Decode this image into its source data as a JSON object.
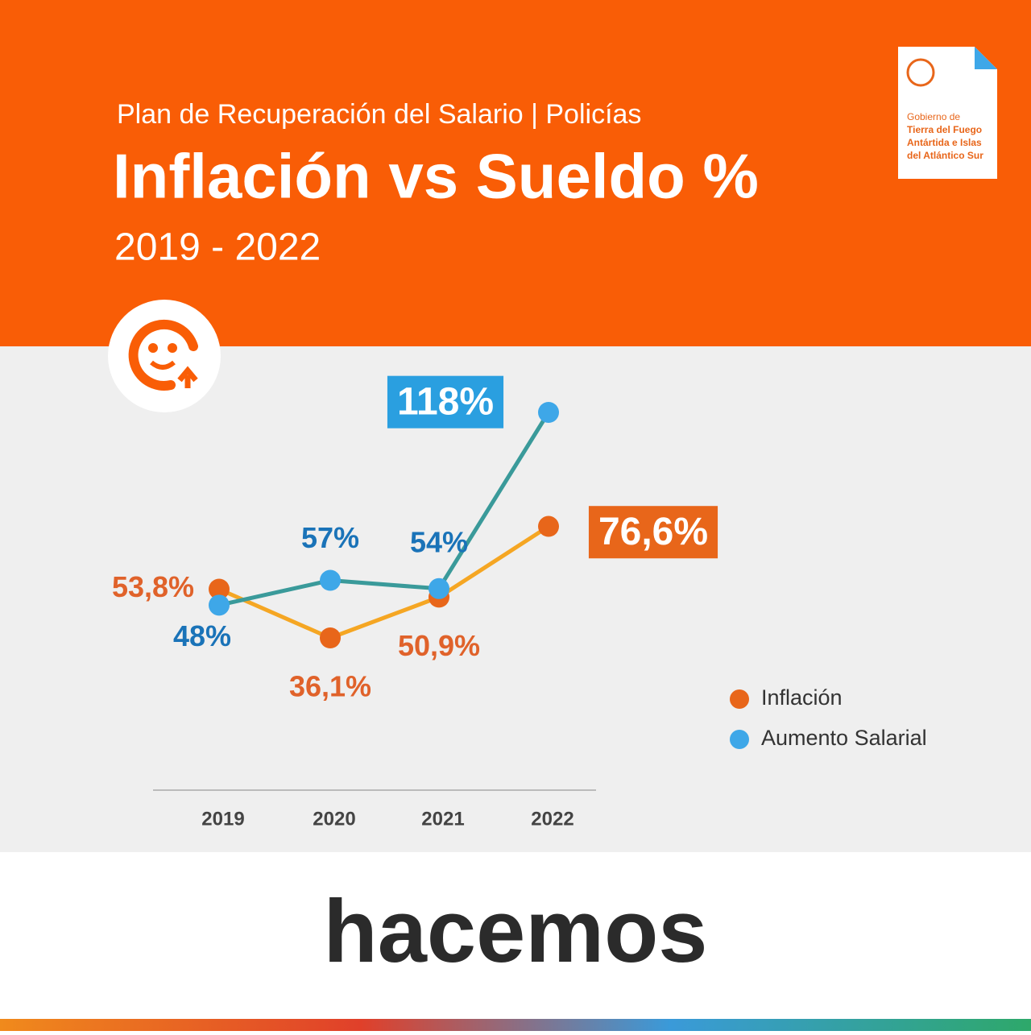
{
  "chart_data": {
    "type": "line",
    "subtitle": "Plan de Recuperación del Salario | Policías",
    "title": "Inflación vs Sueldo %",
    "period": "2019 - 2022",
    "categories": [
      "2019",
      "2020",
      "2021",
      "2022"
    ],
    "series": [
      {
        "name": "Inflación",
        "color": "#e8661a",
        "values": [
          53.8,
          36.1,
          50.9,
          76.6
        ],
        "value_labels": [
          "53,8%",
          "36,1%",
          "50,9%",
          "76,6%"
        ]
      },
      {
        "name": "Aumento Salarial",
        "color": "#3ea7e8",
        "values": [
          48,
          57,
          54,
          118
        ],
        "value_labels": [
          "48%",
          "57%",
          "54%",
          "118%"
        ]
      }
    ]
  },
  "logo": {
    "lines": [
      "Gobierno de",
      "Tierra del Fuego",
      "Antártida e Islas",
      "del Atlántico Sur"
    ]
  },
  "footer": {
    "brand": "hacemos"
  }
}
